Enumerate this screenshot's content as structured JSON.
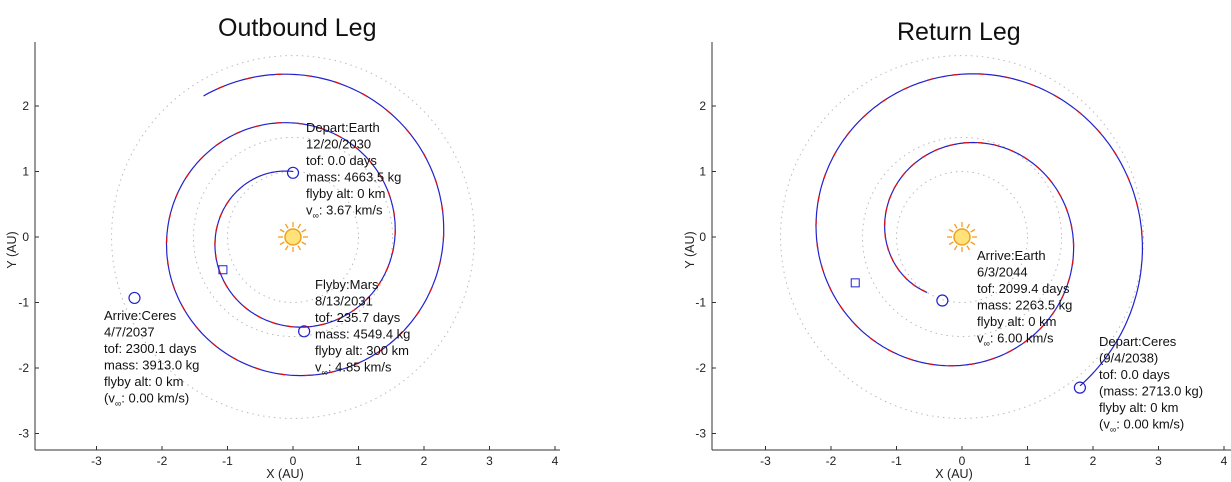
{
  "chart_data": [
    {
      "type": "scatter",
      "title": "Outbound Leg",
      "xlabel": "X (AU)",
      "ylabel": "Y (AU)",
      "xlim": [
        -3.5,
        4
      ],
      "ylim": [
        -3.2,
        2.9
      ],
      "xticks": [
        "-3",
        "-2",
        "-1",
        "0",
        "1",
        "2",
        "3",
        "4"
      ],
      "yticks": [
        "-3",
        "-2",
        "-1",
        "0",
        "1",
        "2"
      ],
      "grid": false,
      "colors": {
        "trajectory": "#2222cc",
        "thrust": "#dd1111",
        "orbit": "#bbbbbb",
        "sun": "#f5b400"
      },
      "events": [
        {
          "name": "Depart:Earth",
          "x": 0.0,
          "y": 0.98,
          "marker": "circle",
          "lines": [
            "Depart:Earth",
            "12/20/2030",
            "tof: 0.0 days",
            "mass: 4663.5 kg",
            "flyby alt: 0 km",
            "v",
            "∞",
            ": 3.67 km/s"
          ]
        },
        {
          "name": "Flyby:Mars",
          "x": 0.17,
          "y": -1.44,
          "marker": "circle",
          "lines": [
            "Flyby:Mars",
            "8/13/2031",
            "tof: 235.7 days",
            "mass: 4549.4 kg",
            "flyby alt: 300 km",
            "v",
            "∞",
            ": 4.85 km/s"
          ]
        },
        {
          "name": "Arrive:Ceres",
          "x": -2.42,
          "y": -0.93,
          "marker": "circle",
          "lines": [
            "Arrive:Ceres",
            "4/7/2037",
            "tof: 2300.1 days",
            "mass: 3913.0 kg",
            "flyby alt: 0 km",
            "(v",
            "∞",
            ": 0.00 km/s)"
          ]
        },
        {
          "name": "maneuver",
          "x": -1.07,
          "y": -0.5,
          "marker": "square"
        }
      ]
    },
    {
      "type": "scatter",
      "title": "Return Leg",
      "xlabel": "X (AU)",
      "ylabel": "Y (AU)",
      "xlim": [
        -3.5,
        4
      ],
      "ylim": [
        -3.2,
        2.9
      ],
      "xticks": [
        "-3",
        "-2",
        "-1",
        "0",
        "1",
        "2",
        "3",
        "4"
      ],
      "yticks": [
        "-3",
        "-2",
        "-1",
        "0",
        "1",
        "2"
      ],
      "grid": false,
      "colors": {
        "trajectory": "#2222cc",
        "thrust": "#dd1111",
        "orbit": "#bbbbbb",
        "sun": "#f5b400"
      },
      "events": [
        {
          "name": "Arrive:Earth",
          "x": -0.3,
          "y": -0.97,
          "marker": "circle",
          "lines": [
            "Arrive:Earth",
            "6/3/2044",
            "tof: 2099.4 days",
            "mass: 2263.5 kg",
            "flyby alt: 0 km",
            "v",
            "∞",
            ": 6.00 km/s"
          ]
        },
        {
          "name": "Depart:Ceres",
          "x": 1.8,
          "y": -2.3,
          "marker": "circle",
          "lines": [
            "Depart:Ceres",
            "(9/4/2038)",
            "tof: 0.0 days",
            "(mass: 2713.0 kg)",
            "flyby alt: 0 km",
            "(v",
            "∞",
            ": 0.00 km/s)"
          ]
        },
        {
          "name": "maneuver",
          "x": -1.63,
          "y": -0.7,
          "marker": "square"
        }
      ]
    }
  ]
}
